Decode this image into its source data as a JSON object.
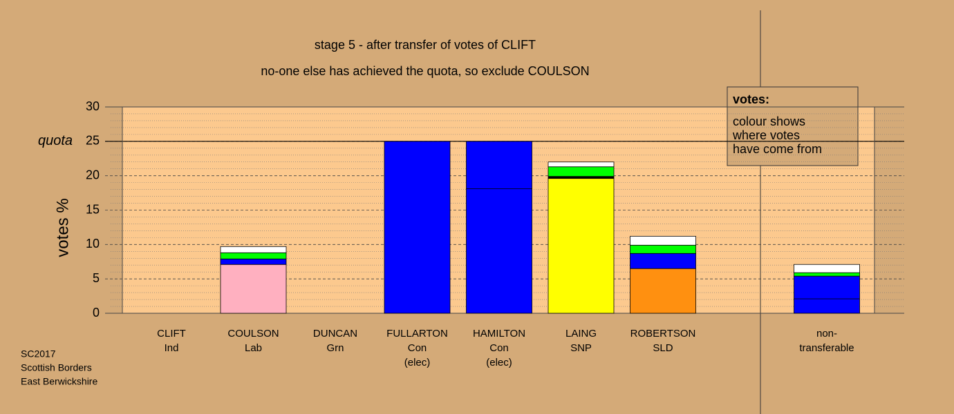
{
  "chart_data": {
    "type": "stacked-bar",
    "title": "stage 5 - after transfer of votes of CLIFT",
    "subtitle": "no-one else has achieved the quota, so exclude COULSON",
    "y_label": "votes %",
    "quota": {
      "value": 25,
      "label": "quota"
    },
    "ylim": [
      0,
      30
    ],
    "yticks": [
      0,
      5,
      10,
      15,
      20,
      25,
      30
    ],
    "minor_yticks": [
      1,
      2,
      3,
      4,
      6,
      7,
      8,
      9,
      11,
      12,
      13,
      14,
      16,
      17,
      18,
      19,
      21,
      22,
      23,
      24,
      26,
      27,
      28,
      29
    ],
    "categories": [
      [
        "CLIFT",
        "Ind"
      ],
      [
        "COULSON",
        "Lab"
      ],
      [
        "DUNCAN",
        "Grn"
      ],
      [
        "FULLARTON",
        "Con",
        "(elec)"
      ],
      [
        "HAMILTON",
        "Con",
        "(elec)"
      ],
      [
        "LAING",
        "SNP"
      ],
      [
        "ROBERTSON",
        "SLD"
      ],
      null,
      [
        "non-",
        "transferable"
      ]
    ],
    "segments": [
      [],
      [
        {
          "color": "#ffb0c0",
          "value": 7.1
        },
        {
          "color": "#0000ff",
          "value": 0.8
        },
        {
          "color": "#00ff00",
          "value": 0.9
        },
        {
          "color": "#ffffff",
          "value": 0.9
        }
      ],
      [],
      [
        {
          "color": "#0000ff",
          "value": 25
        }
      ],
      [
        {
          "color": "#0000ff",
          "value": 18.1
        },
        {
          "color": "#0000ff",
          "value": 6.9
        }
      ],
      [
        {
          "color": "#ffff00",
          "value": 19.6
        },
        {
          "color": "#000000",
          "value": 0.3
        },
        {
          "color": "#00ff00",
          "value": 1.4
        },
        {
          "color": "#ffffff",
          "value": 0.7
        }
      ],
      [
        {
          "color": "#ff9010",
          "value": 6.5
        },
        {
          "color": "#0000ff",
          "value": 2.2
        },
        {
          "color": "#00ff00",
          "value": 1.2
        },
        {
          "color": "#ffffff",
          "value": 1.3
        }
      ],
      [],
      [
        {
          "color": "#0000ff",
          "value": 2.1
        },
        {
          "color": "#0000ff",
          "value": 3.3
        },
        {
          "color": "#00ff00",
          "value": 0.5
        },
        {
          "color": "#ffffff",
          "value": 1.2
        }
      ]
    ],
    "note": {
      "heading": "votes:",
      "lines": [
        "colour shows",
        "where votes",
        "have come from"
      ]
    },
    "footer": [
      "SC2017",
      "Scottish Borders",
      "East Berwickshire"
    ]
  }
}
